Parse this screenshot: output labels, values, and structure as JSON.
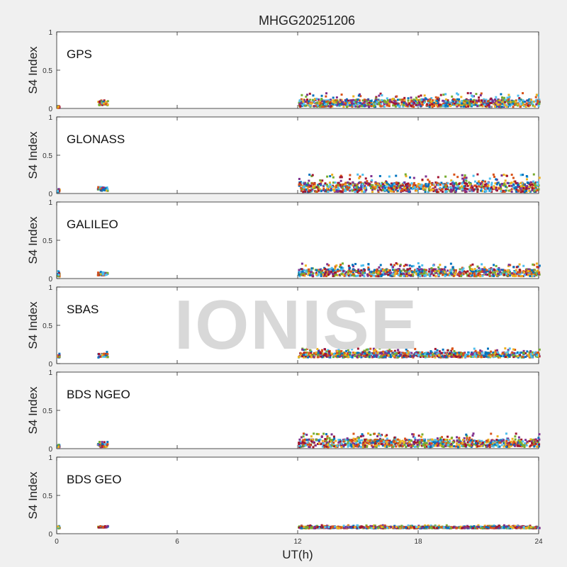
{
  "chart_data": {
    "type": "scatter",
    "title": "MHGG20251206",
    "xlabel": "UT(h)",
    "ylabel": "S4 Index",
    "xlim": [
      0,
      24
    ],
    "ylim": [
      0,
      1
    ],
    "xticks": [
      "0",
      "6",
      "12",
      "18",
      "24"
    ],
    "yticks": [
      "0",
      "0.5",
      "1"
    ],
    "watermark": "IONISE",
    "grid": false,
    "colors": [
      "#0072BD",
      "#D95319",
      "#EDB120",
      "#7E2F8E",
      "#77AC30",
      "#4DBEEE",
      "#A2142F"
    ],
    "panels": [
      {
        "name": "GPS",
        "segments": [
          {
            "x": [
              0.0,
              0.1
            ],
            "y": [
              0.0,
              0.06
            ]
          },
          {
            "x": [
              2.0,
              2.5
            ],
            "y": [
              0.04,
              0.14
            ]
          },
          {
            "x": [
              12.0,
              24.0
            ],
            "y": [
              0.02,
              0.2
            ]
          }
        ]
      },
      {
        "name": "GLONASS",
        "segments": [
          {
            "x": [
              0.0,
              0.1
            ],
            "y": [
              0.02,
              0.06
            ]
          },
          {
            "x": [
              2.0,
              2.5
            ],
            "y": [
              0.03,
              0.13
            ]
          },
          {
            "x": [
              12.0,
              24.0
            ],
            "y": [
              0.02,
              0.25
            ]
          }
        ]
      },
      {
        "name": "GALILEO",
        "segments": [
          {
            "x": [
              0.0,
              0.1
            ],
            "y": [
              0.02,
              0.1
            ]
          },
          {
            "x": [
              2.0,
              2.5
            ],
            "y": [
              0.04,
              0.1
            ]
          },
          {
            "x": [
              12.0,
              24.0
            ],
            "y": [
              0.03,
              0.2
            ]
          }
        ]
      },
      {
        "name": "SBAS",
        "segments": [
          {
            "x": [
              0.0,
              0.1
            ],
            "y": [
              0.08,
              0.13
            ]
          },
          {
            "x": [
              2.0,
              2.5
            ],
            "y": [
              0.08,
              0.17
            ]
          },
          {
            "x": [
              12.0,
              24.0
            ],
            "y": [
              0.08,
              0.2
            ]
          }
        ]
      },
      {
        "name": "BDS NGEO",
        "segments": [
          {
            "x": [
              0.0,
              0.1
            ],
            "y": [
              0.02,
              0.08
            ]
          },
          {
            "x": [
              2.0,
              2.5
            ],
            "y": [
              0.02,
              0.1
            ]
          },
          {
            "x": [
              12.0,
              24.0
            ],
            "y": [
              0.02,
              0.2
            ]
          }
        ]
      },
      {
        "name": "BDS GEO",
        "segments": [
          {
            "x": [
              0.0,
              0.1
            ],
            "y": [
              0.07,
              0.1
            ]
          },
          {
            "x": [
              2.0,
              2.5
            ],
            "y": [
              0.08,
              0.1
            ]
          },
          {
            "x": [
              12.0,
              24.0
            ],
            "y": [
              0.07,
              0.11
            ]
          }
        ]
      }
    ]
  }
}
